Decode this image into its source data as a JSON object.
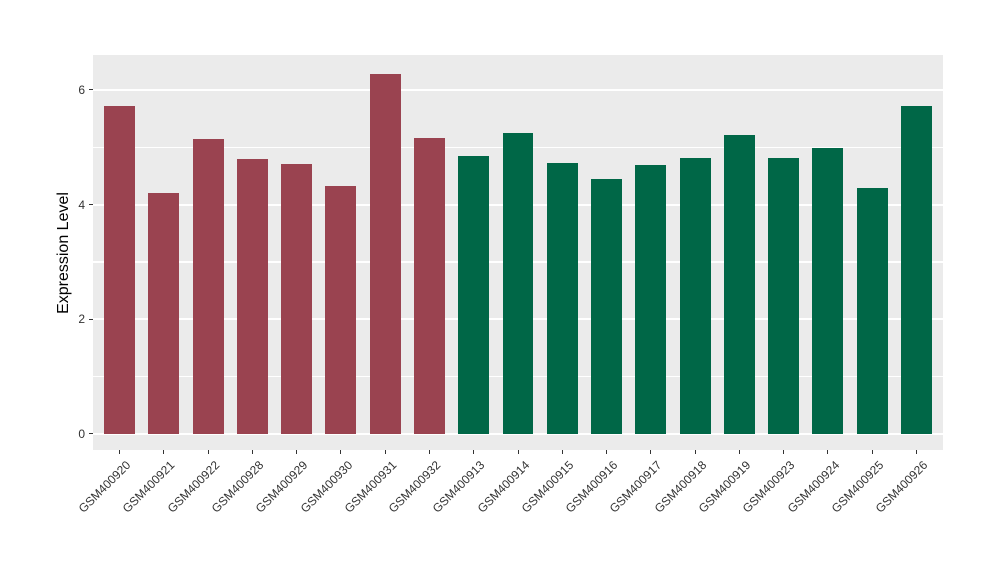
{
  "chart_data": {
    "type": "bar",
    "title": "",
    "xlabel": "",
    "ylabel": "Expression Level",
    "categories": [
      "GSM400920",
      "GSM400921",
      "GSM400922",
      "GSM400928",
      "GSM400929",
      "GSM400930",
      "GSM400931",
      "GSM400932",
      "GSM400913",
      "GSM400914",
      "GSM400915",
      "GSM400916",
      "GSM400917",
      "GSM400918",
      "GSM400919",
      "GSM400923",
      "GSM400924",
      "GSM400925",
      "GSM400926"
    ],
    "values": [
      5.72,
      4.2,
      5.15,
      4.8,
      4.7,
      4.33,
      6.27,
      5.17,
      4.84,
      5.25,
      4.72,
      4.44,
      4.69,
      4.81,
      5.21,
      4.81,
      4.98,
      4.29,
      5.72
    ],
    "bar_groups": [
      "A",
      "A",
      "A",
      "A",
      "A",
      "A",
      "A",
      "A",
      "B",
      "B",
      "B",
      "B",
      "B",
      "B",
      "B",
      "B",
      "B",
      "B",
      "B"
    ],
    "group_colors": {
      "A": "#9A4350",
      "B": "#006747"
    },
    "ylim": [
      -0.28,
      6.61
    ],
    "yticks": [
      0,
      2,
      4,
      6
    ],
    "y_minor_gridlines": [
      1,
      3,
      5
    ],
    "grid": "major+minor",
    "legend_position": "none",
    "panel_background": "#EBEBEB",
    "gridline_color": "#FFFFFF",
    "bar_width_fraction": 0.7
  }
}
